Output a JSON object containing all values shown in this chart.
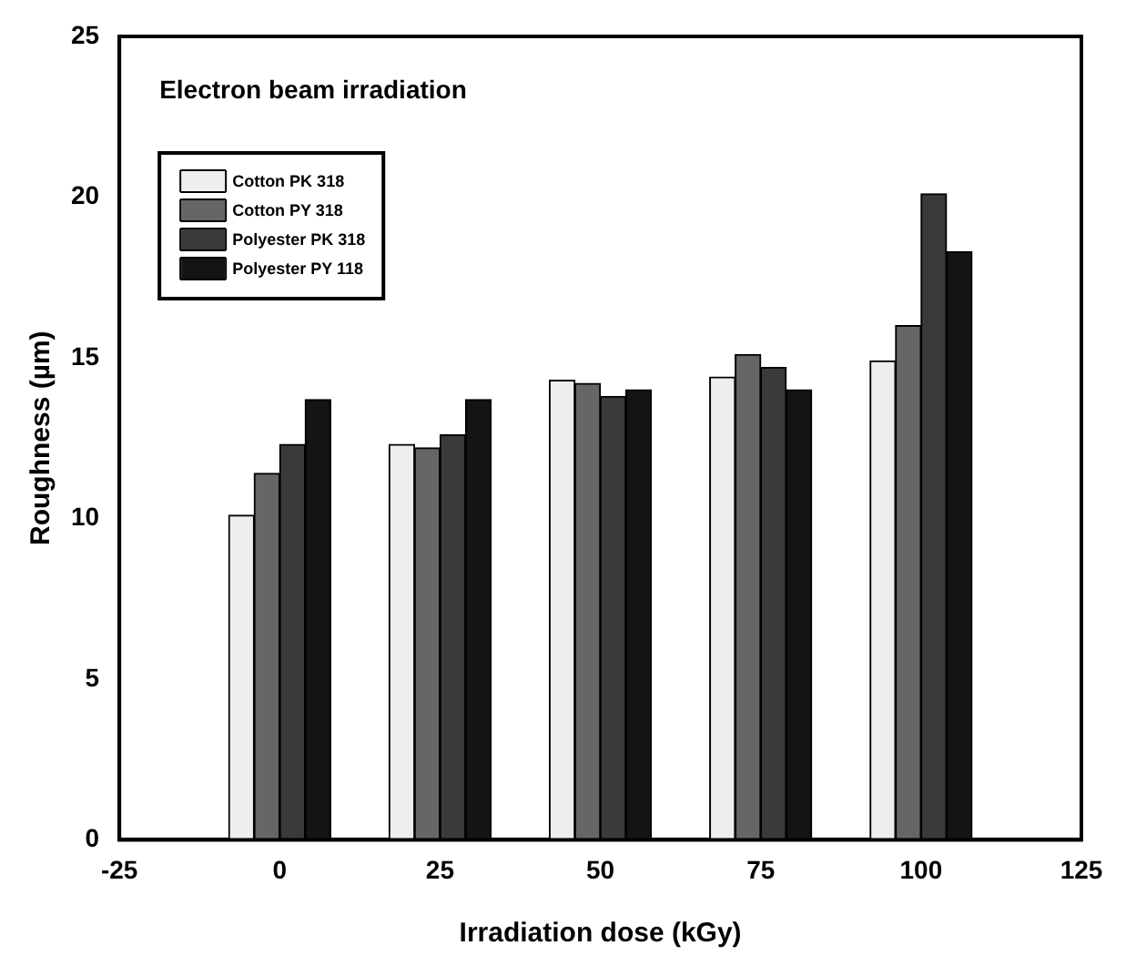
{
  "chart_data": {
    "type": "bar",
    "title": "Electron beam irradiation",
    "xlabel": "Irradiation dose (kGy)",
    "ylabel": "Roughness (µm)",
    "x": [
      0,
      25,
      50,
      75,
      100
    ],
    "series": [
      {
        "name": "Cotton PK 318",
        "color": "#eeeeee",
        "values": [
          10.1,
          12.3,
          14.3,
          14.4,
          14.9
        ]
      },
      {
        "name": "Cotton PY 318",
        "color": "#666666",
        "values": [
          11.4,
          12.2,
          14.2,
          15.1,
          16.0
        ]
      },
      {
        "name": "Polyester PK 318",
        "color": "#3a3a3a",
        "values": [
          12.3,
          12.6,
          13.8,
          14.7,
          20.1
        ]
      },
      {
        "name": "Polyester PY 118",
        "color": "#141414",
        "values": [
          13.7,
          13.7,
          14.0,
          14.0,
          18.3
        ]
      }
    ],
    "xlim": [
      -25,
      125
    ],
    "xticks": [
      -25,
      0,
      25,
      50,
      75,
      100,
      125
    ],
    "ylim": [
      0,
      25
    ],
    "yticks": [
      0,
      5,
      10,
      15,
      20,
      25
    ],
    "grid": false,
    "legend": "top left"
  }
}
